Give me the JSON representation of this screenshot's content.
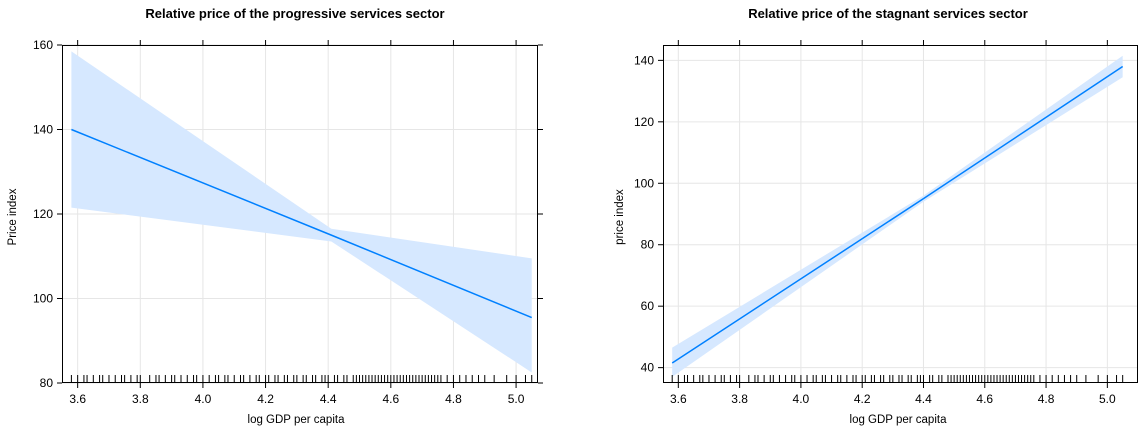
{
  "chart_data": [
    {
      "type": "line",
      "title": "Relative price of the progressive services sector",
      "xlabel": "log GDP per capita",
      "ylabel": "Price index",
      "xlim": [
        3.55,
        5.07
      ],
      "ylim": [
        80,
        160
      ],
      "xticks": [
        3.6,
        3.8,
        4.0,
        4.2,
        4.4,
        4.6,
        4.8,
        5.0
      ],
      "xtick_labels": [
        "3.6",
        "3.8",
        "4.0",
        "4.2",
        "4.4",
        "4.6",
        "4.8",
        "5.0"
      ],
      "yticks": [
        80,
        100,
        120,
        140,
        160
      ],
      "ytick_labels": [
        "80",
        "100",
        "120",
        "140",
        "160"
      ],
      "grid": true,
      "series": [
        {
          "kind": "fit",
          "color": "#0080ff",
          "x": [
            3.58,
            4.41,
            5.05
          ],
          "y": [
            140,
            115,
            95.5
          ]
        },
        {
          "kind": "confidence-band",
          "color": "#d6e8ff",
          "x": [
            3.58,
            4.41,
            5.05
          ],
          "lower": [
            121.5,
            113.5,
            82.5
          ],
          "upper": [
            158.5,
            116.5,
            109.5
          ]
        }
      ],
      "rug": [
        3.58,
        3.6,
        3.62,
        3.63,
        3.65,
        3.67,
        3.68,
        3.7,
        3.72,
        3.74,
        3.75,
        3.77,
        3.79,
        3.8,
        3.83,
        3.85,
        3.86,
        3.88,
        3.9,
        3.91,
        3.93,
        3.95,
        3.97,
        3.98,
        4.0,
        4.02,
        4.04,
        4.05,
        4.07,
        4.08,
        4.1,
        4.12,
        4.13,
        4.15,
        4.17,
        4.18,
        4.2,
        4.21,
        4.23,
        4.24,
        4.26,
        4.27,
        4.29,
        4.3,
        4.32,
        4.33,
        4.35,
        4.36,
        4.38,
        4.39,
        4.4,
        4.42,
        4.43,
        4.45,
        4.46,
        4.48,
        4.49,
        4.5,
        4.51,
        4.52,
        4.53,
        4.54,
        4.55,
        4.56,
        4.57,
        4.58,
        4.59,
        4.6,
        4.61,
        4.62,
        4.63,
        4.64,
        4.65,
        4.66,
        4.67,
        4.68,
        4.69,
        4.7,
        4.71,
        4.72,
        4.73,
        4.74,
        4.75,
        4.76,
        4.78,
        4.8,
        4.82,
        4.84,
        4.86,
        4.88,
        4.9,
        4.93,
        4.97,
        5.0,
        5.03,
        5.05
      ]
    },
    {
      "type": "line",
      "title": "Relative price of the stagnant services sector",
      "xlabel": "log GDP per capita",
      "ylabel": "price index",
      "xlim": [
        3.55,
        5.1
      ],
      "ylim": [
        35,
        145
      ],
      "xticks": [
        3.6,
        3.8,
        4.0,
        4.2,
        4.4,
        4.6,
        4.8,
        5.0
      ],
      "xtick_labels": [
        "3.6",
        "3.8",
        "4.0",
        "4.2",
        "4.4",
        "4.6",
        "4.8",
        "5.0"
      ],
      "yticks": [
        40,
        60,
        80,
        100,
        120,
        140
      ],
      "ytick_labels": [
        "40",
        "60",
        "80",
        "100",
        "120",
        "140"
      ],
      "grid": true,
      "series": [
        {
          "kind": "fit",
          "color": "#0080ff",
          "x": [
            3.58,
            4.4,
            5.05
          ],
          "y": [
            41.5,
            95,
            138
          ]
        },
        {
          "kind": "confidence-band",
          "color": "#d6e8ff",
          "x": [
            3.58,
            4.4,
            5.05
          ],
          "lower": [
            37,
            94,
            134.5
          ],
          "upper": [
            46.5,
            96,
            141.5
          ]
        }
      ],
      "rug": [
        3.58,
        3.6,
        3.62,
        3.63,
        3.65,
        3.67,
        3.68,
        3.7,
        3.72,
        3.74,
        3.75,
        3.77,
        3.79,
        3.8,
        3.83,
        3.85,
        3.86,
        3.88,
        3.9,
        3.91,
        3.93,
        3.95,
        3.97,
        3.98,
        4.0,
        4.02,
        4.04,
        4.05,
        4.07,
        4.08,
        4.1,
        4.12,
        4.13,
        4.15,
        4.17,
        4.18,
        4.2,
        4.21,
        4.23,
        4.24,
        4.26,
        4.27,
        4.29,
        4.3,
        4.32,
        4.33,
        4.35,
        4.36,
        4.38,
        4.39,
        4.4,
        4.42,
        4.43,
        4.45,
        4.46,
        4.48,
        4.49,
        4.5,
        4.51,
        4.52,
        4.53,
        4.54,
        4.55,
        4.56,
        4.57,
        4.58,
        4.59,
        4.6,
        4.61,
        4.62,
        4.63,
        4.64,
        4.65,
        4.66,
        4.67,
        4.68,
        4.69,
        4.7,
        4.71,
        4.72,
        4.73,
        4.74,
        4.75,
        4.76,
        4.78,
        4.8,
        4.82,
        4.84,
        4.86,
        4.88,
        4.9,
        4.93,
        4.97,
        5.0,
        5.03,
        5.05
      ]
    }
  ]
}
